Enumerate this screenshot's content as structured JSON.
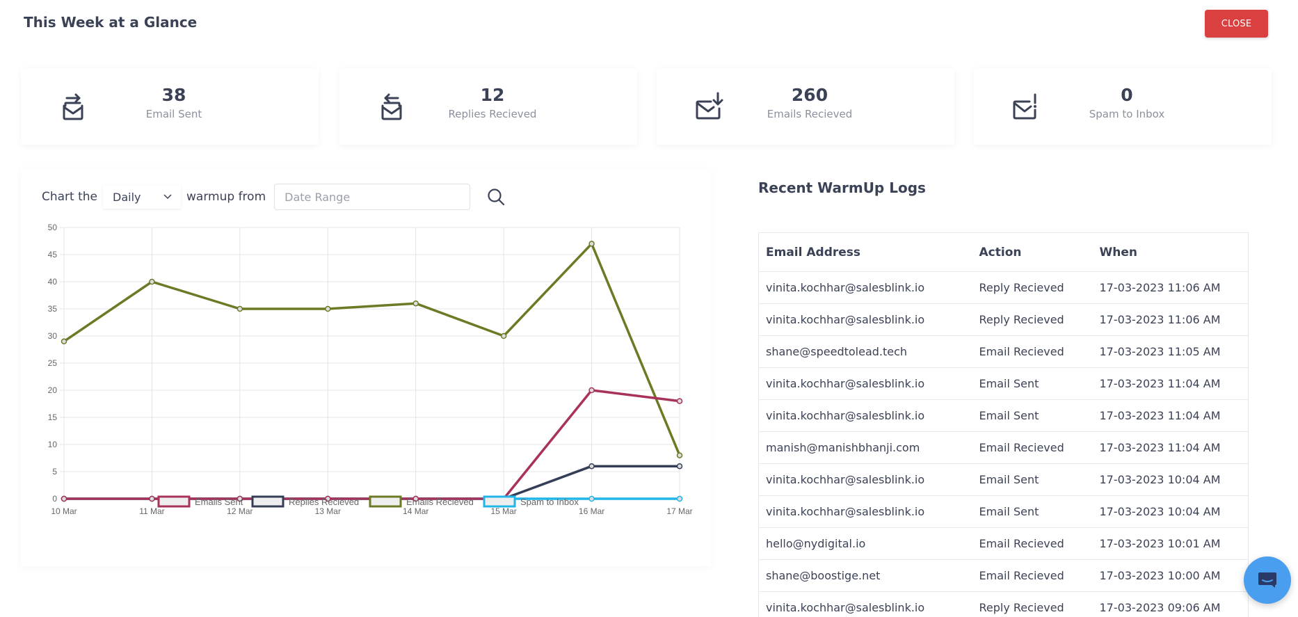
{
  "header": {
    "title": "This Week at a Glance",
    "close_label": "CLOSE"
  },
  "stats": [
    {
      "value": "38",
      "label": "Email Sent",
      "icon": "mail-send-icon"
    },
    {
      "value": "12",
      "label": "Replies Recieved",
      "icon": "mail-reply-icon"
    },
    {
      "value": "260",
      "label": "Emails Recieved",
      "icon": "mail-download-icon"
    },
    {
      "value": "0",
      "label": "Spam to Inbox",
      "icon": "mail-alert-icon"
    }
  ],
  "controls": {
    "prefix": "Chart the",
    "period": "Daily",
    "middle": "warmup from",
    "date_placeholder": "Date Range"
  },
  "chart_data": {
    "type": "line",
    "categories": [
      "10 Mar",
      "11 Mar",
      "12 Mar",
      "13 Mar",
      "14 Mar",
      "15 Mar",
      "16 Mar",
      "17 Mar"
    ],
    "ylim": [
      0,
      50
    ],
    "yticks": [
      0,
      5,
      10,
      15,
      20,
      25,
      30,
      35,
      40,
      45,
      50
    ],
    "grid": true,
    "legend": "bottom",
    "series": [
      {
        "name": "Emails Sent",
        "color": "#a8325a",
        "values": [
          0,
          0,
          0,
          0,
          0,
          0,
          20,
          18
        ]
      },
      {
        "name": "Replies Recieved",
        "color": "#343f57",
        "values": [
          0,
          0,
          0,
          0,
          0,
          0,
          6,
          6
        ]
      },
      {
        "name": "Emails Recieved",
        "color": "#6b7a25",
        "values": [
          29,
          40,
          35,
          35,
          36,
          30,
          47,
          8
        ]
      },
      {
        "name": "Spam to Inbox",
        "color": "#22b5e8",
        "values": [
          0,
          0,
          0,
          0,
          0,
          0,
          0,
          0
        ]
      }
    ]
  },
  "logs": {
    "title": "Recent WarmUp Logs",
    "headers": [
      "Email Address",
      "Action",
      "When"
    ],
    "rows": [
      [
        "vinita.kochhar@salesblink.io",
        "Reply Recieved",
        "17-03-2023 11:06 AM"
      ],
      [
        "vinita.kochhar@salesblink.io",
        "Reply Recieved",
        "17-03-2023 11:06 AM"
      ],
      [
        "shane@speedtolead.tech",
        "Email Recieved",
        "17-03-2023 11:05 AM"
      ],
      [
        "vinita.kochhar@salesblink.io",
        "Email Sent",
        "17-03-2023 11:04 AM"
      ],
      [
        "vinita.kochhar@salesblink.io",
        "Email Sent",
        "17-03-2023 11:04 AM"
      ],
      [
        "manish@manishbhanji.com",
        "Email Recieved",
        "17-03-2023 11:04 AM"
      ],
      [
        "vinita.kochhar@salesblink.io",
        "Email Sent",
        "17-03-2023 10:04 AM"
      ],
      [
        "vinita.kochhar@salesblink.io",
        "Email Sent",
        "17-03-2023 10:04 AM"
      ],
      [
        "hello@nydigital.io",
        "Email Recieved",
        "17-03-2023 10:01 AM"
      ],
      [
        "shane@boostige.net",
        "Email Recieved",
        "17-03-2023 10:00 AM"
      ],
      [
        "vinita.kochhar@salesblink.io",
        "Reply Recieved",
        "17-03-2023 09:06 AM"
      ]
    ]
  },
  "chat": {
    "icon": "chat-icon"
  }
}
